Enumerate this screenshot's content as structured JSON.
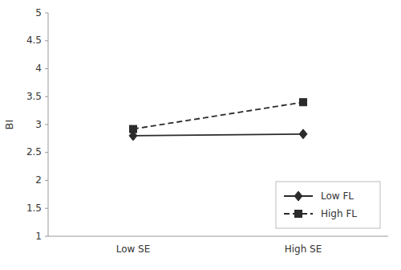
{
  "chart_data": {
    "type": "line",
    "categories": [
      "Low SE",
      "High SE"
    ],
    "series": [
      {
        "name": "Low FL",
        "color": "#2b2b2b",
        "values": [
          2.8,
          2.83
        ],
        "marker": "diamond",
        "line_style": "solid"
      },
      {
        "name": "High FL",
        "color": "#2b2b2b",
        "values": [
          2.92,
          3.4
        ],
        "marker": "square",
        "line_style": "dashed"
      }
    ],
    "ylabel": "BI",
    "ylim": [
      1,
      5
    ],
    "yticks": [
      1,
      1.5,
      2,
      2.5,
      3,
      3.5,
      4,
      4.5,
      5
    ],
    "grid": false,
    "legend": "lower right"
  }
}
